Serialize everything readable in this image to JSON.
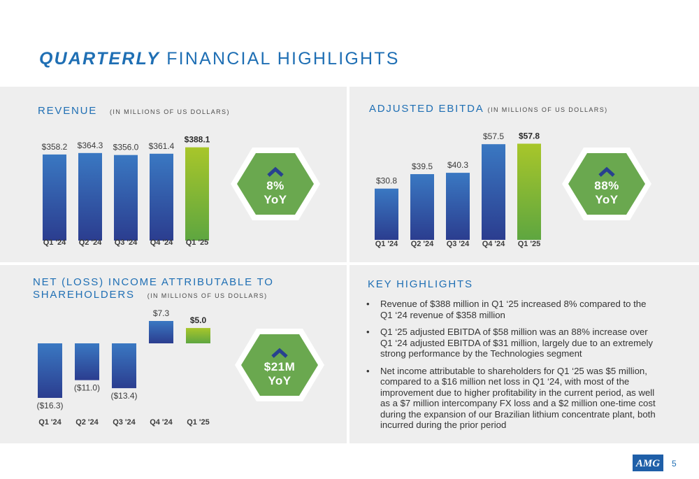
{
  "page": {
    "title_bold": "QUARTERLY",
    "title_rest": " FINANCIAL HIGHLIGHTS",
    "page_number": "5",
    "logo_text": "AMG"
  },
  "colors": {
    "accent": "#1f6fb4",
    "bar_top": "#3a78c2",
    "bar_bottom": "#2b3d8f",
    "highlight_top": "#a8c62a",
    "highlight_bottom": "#5ea640",
    "badge_green": "#6aa84f",
    "chevron": "#27418f"
  },
  "revenue": {
    "title": "REVENUE",
    "unit": "(IN MILLIONS OF US DOLLARS)",
    "badge_line1": "8%",
    "badge_line2": "YoY"
  },
  "ebitda": {
    "title": "ADJUSTED EBITDA",
    "unit": "(IN MILLIONS OF US DOLLARS)",
    "badge_line1": "88%",
    "badge_line2": "YoY"
  },
  "net_income": {
    "title_line1": "NET (LOSS) INCOME ATTRIBUTABLE TO",
    "title_line2": "SHAREHOLDERS",
    "unit": "(IN MILLIONS OF US DOLLARS)",
    "badge_line1": "$21M",
    "badge_line2": "YoY"
  },
  "key_highlights": {
    "title": "KEY HIGHLIGHTS",
    "bullet": "•",
    "items": [
      "Revenue of $388 million in Q1 ‘25 increased 8% compared to the Q1 ‘24 revenue of $358 million",
      "Q1 ‘25 adjusted EBITDA of $58 million was an 88% increase over Q1 ‘24 adjusted EBITDA of $31 million, largely due to an extremely strong performance by the Technologies segment",
      "Net income attributable to shareholders for Q1 ‘25 was $5 million, compared to a $16 million net loss in Q1 ‘24, with most of the improvement due to higher profitability in the current period, as well as a $7 million intercompany FX loss and a $2 million one-time cost during the expansion of our Brazilian lithium concentrate plant, both incurred during the prior period"
    ]
  },
  "chart_data": [
    {
      "type": "bar",
      "title": "REVENUE",
      "subtitle": "(IN MILLIONS OF US DOLLARS)",
      "categories": [
        "Q1 '24",
        "Q2 '24",
        "Q3 '24",
        "Q4 '24",
        "Q1 '25"
      ],
      "values": [
        358.2,
        364.3,
        356.0,
        361.4,
        388.1
      ],
      "labels": [
        "$358.2",
        "$364.3",
        "$356.0",
        "$361.4",
        "$388.1"
      ],
      "highlight_index": 4,
      "ylim": [
        0,
        390
      ]
    },
    {
      "type": "bar",
      "title": "ADJUSTED EBITDA",
      "subtitle": "(IN MILLIONS OF US DOLLARS)",
      "categories": [
        "Q1 '24",
        "Q2 '24",
        "Q3 '24",
        "Q4 '24",
        "Q1 '25"
      ],
      "values": [
        30.8,
        39.5,
        40.3,
        57.5,
        57.8
      ],
      "labels": [
        "$30.8",
        "$39.5",
        "$40.3",
        "$57.5",
        "$57.8"
      ],
      "highlight_index": 4,
      "ylim": [
        0,
        58
      ]
    },
    {
      "type": "bar",
      "title": "NET (LOSS) INCOME ATTRIBUTABLE TO SHAREHOLDERS",
      "subtitle": "(IN MILLIONS OF US DOLLARS)",
      "categories": [
        "Q1 '24",
        "Q2 '24",
        "Q3 '24",
        "Q4 '24",
        "Q1 '25"
      ],
      "values": [
        -16.3,
        -11.0,
        -13.4,
        7.3,
        5.0
      ],
      "labels": [
        "($16.3)",
        "($11.0)",
        "($13.4)",
        "$7.3",
        "$5.0"
      ],
      "highlight_index": 4,
      "ylim": [
        -16.3,
        7.3
      ]
    }
  ]
}
